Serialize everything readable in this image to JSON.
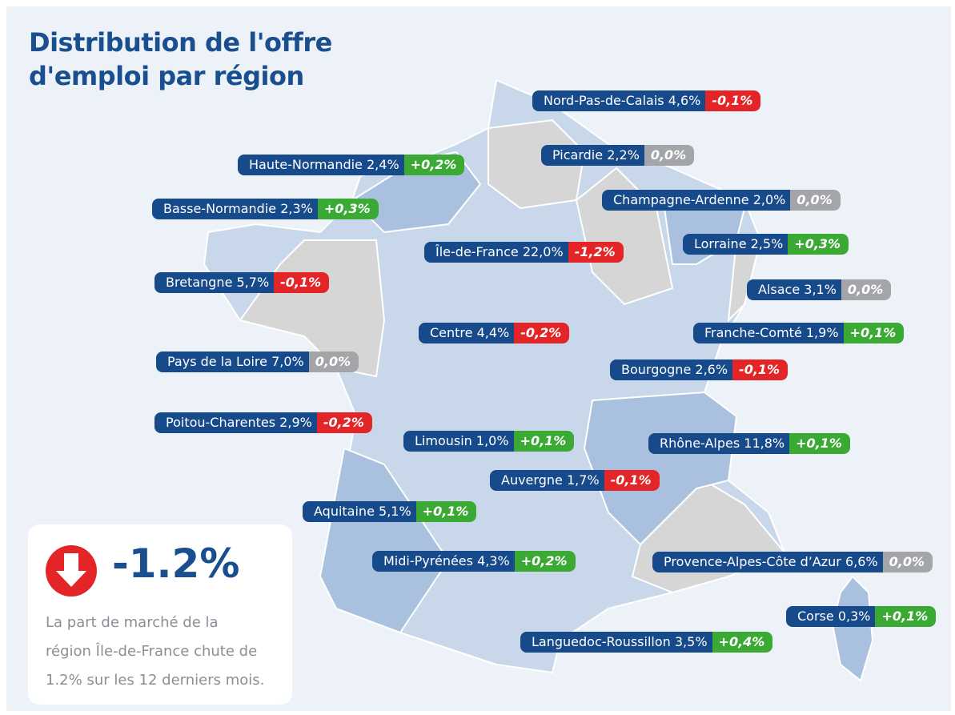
{
  "title": [
    "Distribution de l'offre",
    "d'emploi par région"
  ],
  "regions": [
    {
      "name": "Nord-Pas-de-Calais",
      "share": "4,6%",
      "change": "-0,1%"
    },
    {
      "name": "Picardie",
      "share": "2,2%",
      "change": "0,0%"
    },
    {
      "name": "Haute-Normandie",
      "share": "2,4%",
      "change": "+0,2%"
    },
    {
      "name": "Champagne-Ardenne",
      "share": "2,0%",
      "change": "0,0%"
    },
    {
      "name": "Basse-Normandie",
      "share": "2,3%",
      "change": "+0,3%"
    },
    {
      "name": "Île-de-France",
      "share": "22,0%",
      "change": "-1,2%"
    },
    {
      "name": "Lorraine",
      "share": "2,5%",
      "change": "+0,3%"
    },
    {
      "name": "Bretangne",
      "share": "5,7%",
      "change": "-0,1%"
    },
    {
      "name": "Alsace",
      "share": "3,1%",
      "change": "0,0%"
    },
    {
      "name": "Centre",
      "share": "4,4%",
      "change": "-0,2%"
    },
    {
      "name": "Franche-Comté",
      "share": "1,9%",
      "change": "+0,1%"
    },
    {
      "name": "Pays de la Loire",
      "share": "7,0%",
      "change": "0,0%"
    },
    {
      "name": "Bourgogne",
      "share": "2,6%",
      "change": "-0,1%"
    },
    {
      "name": "Poitou-Charentes",
      "share": "2,9%",
      "change": "-0,2%"
    },
    {
      "name": "Limousin",
      "share": "1,0%",
      "change": "+0,1%"
    },
    {
      "name": "Rhône-Alpes",
      "share": "11,8%",
      "change": "+0,1%"
    },
    {
      "name": "Auvergne",
      "share": "1,7%",
      "change": "-0,1%"
    },
    {
      "name": "Aquitaine",
      "share": "5,1%",
      "change": "+0,1%"
    },
    {
      "name": "Midi-Pyrénées",
      "share": "4,3%",
      "change": "+0,2%"
    },
    {
      "name": "Provence-Alpes-Côte d’Azur",
      "share": "6,6%",
      "change": "0,0%"
    },
    {
      "name": "Corse",
      "share": "0,3%",
      "change": "+0,1%"
    },
    {
      "name": "Languedoc-Roussillon",
      "share": "3,5%",
      "change": "+0,4%"
    }
  ],
  "callout": {
    "headline": "-1.2%",
    "text": [
      "La part de marché de la",
      "région Île-de-France chute de",
      "1.2% sur les 12 derniers mois."
    ]
  }
}
